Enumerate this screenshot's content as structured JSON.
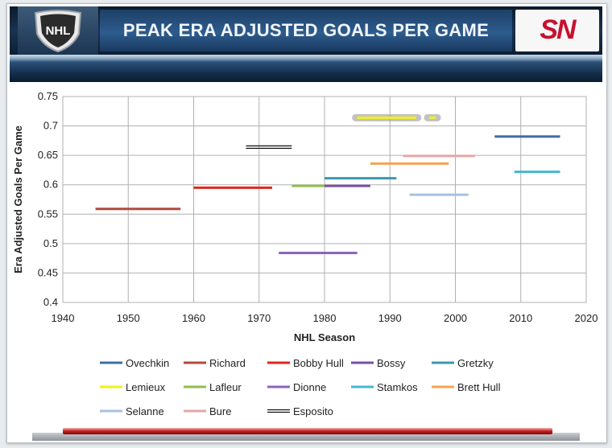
{
  "header": {
    "title": "PEAK ERA ADJUSTED GOALS PER GAME",
    "logo_left": "NHL",
    "logo_right": "SN"
  },
  "colors": {
    "header_bg": "#1a3350",
    "title_band": "#2d5c8e",
    "sn_red": "#c8102e",
    "footer_red": "#c81d1d"
  },
  "icons": {
    "left": "nhl-shield-logo",
    "right": "sportsnet-logo"
  },
  "chart_data": {
    "type": "line",
    "title": "",
    "xlabel": "NHL Season",
    "ylabel": "Era Adjusted Goals Per Game",
    "xlim": [
      1940,
      2020
    ],
    "ylim": [
      0.4,
      0.75
    ],
    "xticks": [
      1940,
      1950,
      1960,
      1970,
      1980,
      1990,
      2000,
      2010,
      2020
    ],
    "yticks": [
      0.4,
      0.45,
      0.5,
      0.55,
      0.6,
      0.65,
      0.7,
      0.75
    ],
    "grid": true,
    "legend_position": "bottom",
    "series": [
      {
        "name": "Ovechkin",
        "color": "#3e6ea8",
        "segments": [
          [
            2006,
            2016
          ]
        ],
        "value": 0.682
      },
      {
        "name": "Richard",
        "color": "#b5483f",
        "segments": [
          [
            1945,
            1958
          ]
        ],
        "value": 0.559
      },
      {
        "name": "Bobby Hull",
        "color": "#e0271b",
        "segments": [
          [
            1960,
            1972
          ]
        ],
        "value": 0.595
      },
      {
        "name": "Bossy",
        "color": "#7a4fa0",
        "segments": [
          [
            1980,
            1987
          ]
        ],
        "value": 0.598
      },
      {
        "name": "Gretzky",
        "color": "#3b97ae",
        "segments": [
          [
            1980,
            1991
          ]
        ],
        "value": 0.611
      },
      {
        "name": "Lemieux",
        "color": "#f2f21a",
        "segments": [
          [
            1985,
            1994
          ],
          [
            1996,
            1997
          ]
        ],
        "value": 0.714
      },
      {
        "name": "Lafleur",
        "color": "#8fbe4c",
        "segments": [
          [
            1975,
            1980
          ]
        ],
        "value": 0.598
      },
      {
        "name": "Dionne",
        "color": "#8c65b8",
        "segments": [
          [
            1973,
            1985
          ]
        ],
        "value": 0.484
      },
      {
        "name": "Stamkos",
        "color": "#44b7d2",
        "segments": [
          [
            2009,
            2016
          ]
        ],
        "value": 0.622
      },
      {
        "name": "Brett Hull",
        "color": "#f5a254",
        "segments": [
          [
            1987,
            1999
          ]
        ],
        "value": 0.636
      },
      {
        "name": "Selanne",
        "color": "#a9c0de",
        "segments": [
          [
            1993,
            2002
          ]
        ],
        "value": 0.583
      },
      {
        "name": "Bure",
        "color": "#e5a6a6",
        "segments": [
          [
            1992,
            2003
          ]
        ],
        "value": 0.649
      },
      {
        "name": "Esposito",
        "color": "#111111",
        "segments": [
          [
            1968,
            1975
          ]
        ],
        "value": 0.664,
        "style": "double"
      }
    ]
  }
}
